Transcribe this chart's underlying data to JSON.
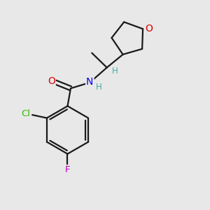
{
  "background_color": "#e8e8e8",
  "bond_color": "#1a1a1a",
  "atom_colors": {
    "O": "#dd0000",
    "N": "#0000ee",
    "Cl": "#33bb00",
    "F": "#bb00bb",
    "H_label": "#44aaaa"
  }
}
